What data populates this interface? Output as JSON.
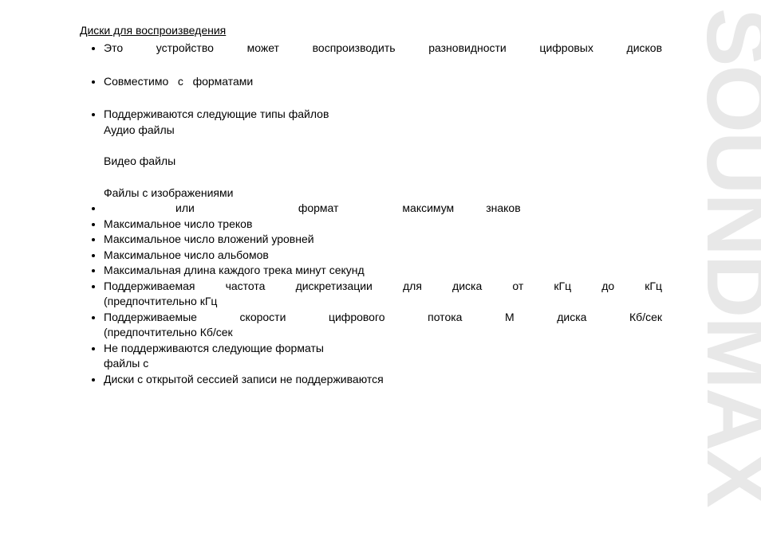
{
  "heading": "Диски для воспроизведения",
  "item1_words": [
    "Это",
    "устройство",
    "может",
    "воспроизводить",
    "разновидности",
    "цифровых",
    "дисков"
  ],
  "item2_words": [
    "Совместимо",
    "с",
    "форматами"
  ],
  "item3_line1": "Поддерживаются следующие типы файлов",
  "item3_sub_audio": "Аудио файлы",
  "item3_sub_video": "Видео файлы",
  "item3_sub_images": "Файлы с изображениями",
  "item4_words": [
    "или",
    "формат",
    "максимум",
    "знаков"
  ],
  "item5": "Максимальное число треков",
  "item6": "Максимальное число вложений        уровней",
  "item7": "Максимальное число альбомов",
  "item8": "Максимальная длина каждого трека        минут       секунд",
  "item9_words": [
    "Поддерживаемая",
    "частота",
    "дискретизации",
    "для",
    "",
    "диска",
    "от",
    "",
    "кГц",
    "до",
    "",
    "кГц"
  ],
  "item9_line2": "(предпочтительно        кГц",
  "item10_words": [
    "Поддерживаемые",
    "скорости",
    "цифрового",
    "потока",
    "М",
    "",
    "диска",
    "",
    "",
    "Кб/сек"
  ],
  "item10_line2": "(предпочтительно        Кб/сек",
  "item11_line1": "Не  поддерживаются  следующие  форматы",
  "item11_line2": "файлы с",
  "item12": "Диски с открытой сессией записи не поддерживаются",
  "watermark": "SOUNDMAX",
  "colors": {
    "text": "#000000",
    "watermark": "#e8e8e8",
    "bg": "#ffffff"
  },
  "fontsize_body": 14,
  "fontsize_watermark": 110
}
